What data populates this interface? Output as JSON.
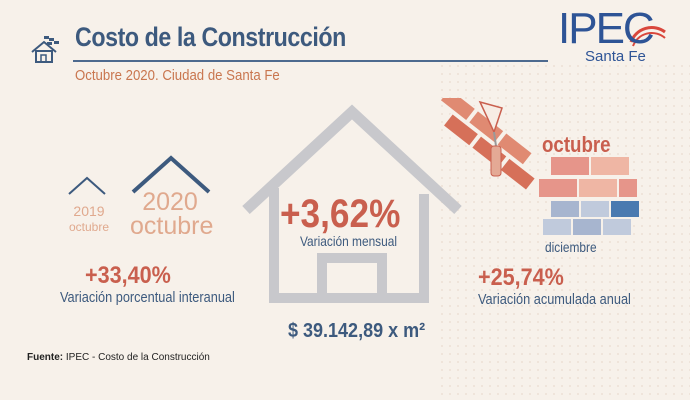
{
  "header": {
    "title": "Costo de la Construcción",
    "subtitle": "Octubre 2020. Ciudad de Santa Fe"
  },
  "logo": {
    "brand": "IPEC",
    "region": "Santa Fe"
  },
  "icons": {
    "header_icon": "house-with-roof-tiles-icon",
    "trowel_icon": "trowel-icon"
  },
  "comparison": {
    "year_2019": "2019",
    "year_2019_month": "octubre",
    "year_2020": "2020",
    "year_2020_month": "octubre"
  },
  "interanual": {
    "value": "+33,40%",
    "label": "Variación porcentual interanual"
  },
  "mensual": {
    "value": "+3,62%",
    "label": "Variación mensual"
  },
  "acumulada": {
    "value": "+25,74%",
    "label": "Variación acumulada anual",
    "top_label": "octubre",
    "bottom_label": "diciembre"
  },
  "precio": {
    "value": "$ 39.142,89 x m²"
  },
  "source": {
    "prefix": "Fuente:",
    "text": "IPEC - Costo de la Construcción"
  },
  "colors": {
    "navy": "#3d5a7e",
    "coral": "#c95f4e",
    "peach": "#e0a98e",
    "grey_house": "#c8c8cc",
    "brand_blue": "#2e5496",
    "brand_red": "#d9473c"
  }
}
